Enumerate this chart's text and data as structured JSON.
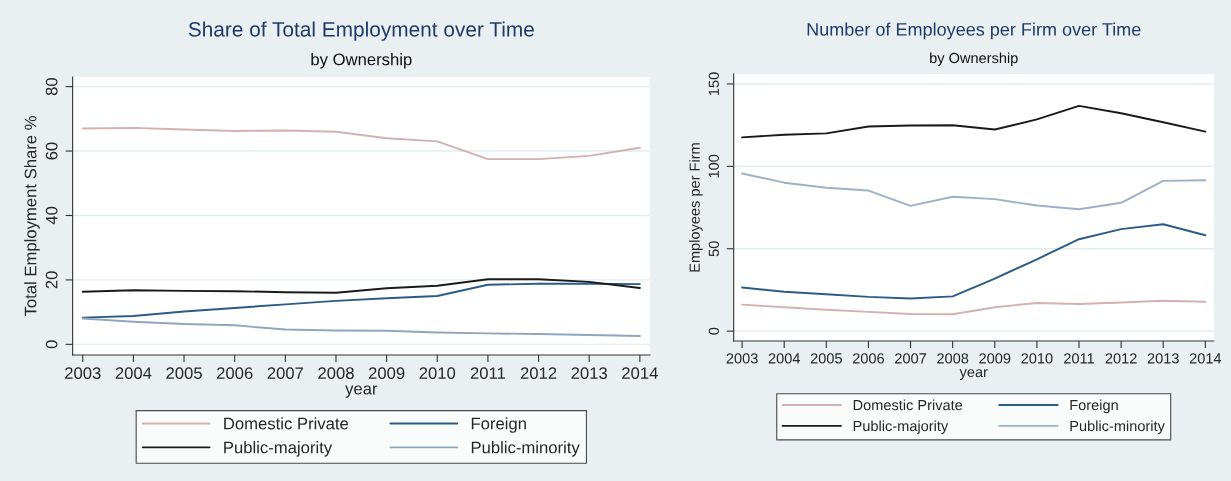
{
  "chart_data": [
    {
      "type": "line",
      "title": "Share of Total Employment over Time",
      "subtitle": "by Ownership",
      "xlabel": "year",
      "ylabel": "Total Employment Share %",
      "x": [
        2003,
        2004,
        2005,
        2006,
        2007,
        2008,
        2009,
        2010,
        2011,
        2012,
        2013,
        2014
      ],
      "series": [
        {
          "name": "Domestic Private",
          "color": "#d4b0b0",
          "values": [
            67,
            67.2,
            66.7,
            66.2,
            66.4,
            66,
            64,
            63,
            57.5,
            57.5,
            58.5,
            61
          ]
        },
        {
          "name": "Foreign",
          "color": "#2d5b85",
          "values": [
            8.3,
            8.8,
            10.2,
            11.3,
            12.4,
            13.5,
            14.3,
            15,
            18.5,
            18.8,
            18.8,
            18.7
          ]
        },
        {
          "name": "Public-majority",
          "color": "#1a1a1a",
          "values": [
            16.3,
            16.8,
            16.6,
            16.5,
            16.2,
            16,
            17.4,
            18.2,
            20.2,
            20.2,
            19.4,
            17.5
          ]
        },
        {
          "name": "Public-minority",
          "color": "#8fa6bd",
          "values": [
            8,
            7,
            6.3,
            5.9,
            4.6,
            4.3,
            4.2,
            3.7,
            3.4,
            3.2,
            2.9,
            2.6
          ]
        }
      ],
      "xlim": [
        2002.8,
        2014.2
      ],
      "xticks": [
        2003,
        2004,
        2005,
        2006,
        2007,
        2008,
        2009,
        2010,
        2011,
        2012,
        2013,
        2014
      ],
      "ylim": [
        -3.3,
        83
      ],
      "yticks": [
        0,
        20,
        40,
        60,
        80
      ],
      "grid": "y",
      "legend": "bottom"
    },
    {
      "type": "line",
      "title": "Number of Employees per Firm over Time",
      "subtitle": "by Ownership",
      "xlabel": "year",
      "ylabel": "Employees per Firm",
      "x": [
        2003,
        2004,
        2005,
        2006,
        2007,
        2008,
        2009,
        2010,
        2011,
        2012,
        2013,
        2014
      ],
      "series": [
        {
          "name": "Domestic Private",
          "color": "#d4b0b0",
          "values": [
            16.1,
            14.5,
            13,
            11.7,
            10.4,
            10.2,
            14.5,
            17.1,
            16.5,
            17.4,
            18.5,
            17.8
          ]
        },
        {
          "name": "Foreign",
          "color": "#2d5b85",
          "values": [
            26.5,
            23.9,
            22.4,
            20.8,
            19.8,
            21.1,
            31.9,
            43.6,
            55.8,
            61.9,
            64.9,
            58.2
          ]
        },
        {
          "name": "Public-majority",
          "color": "#1a1a1a",
          "values": [
            117.6,
            119.2,
            120,
            124.2,
            124.8,
            125,
            122.4,
            128.5,
            136.7,
            132.2,
            126.8,
            121.1
          ]
        },
        {
          "name": "Public-minority",
          "color": "#9eb0c6",
          "values": [
            95.7,
            90.1,
            87,
            85.3,
            76,
            81.6,
            80.1,
            76.2,
            74,
            77.9,
            91.2,
            91.6
          ]
        }
      ],
      "xlim": [
        2002.8,
        2014.2
      ],
      "xticks": [
        2003,
        2004,
        2005,
        2006,
        2007,
        2008,
        2009,
        2010,
        2011,
        2012,
        2013,
        2014
      ],
      "ylim": [
        -6,
        156
      ],
      "yticks": [
        0,
        50,
        100,
        150
      ],
      "grid": "y",
      "legend": "bottom"
    }
  ]
}
